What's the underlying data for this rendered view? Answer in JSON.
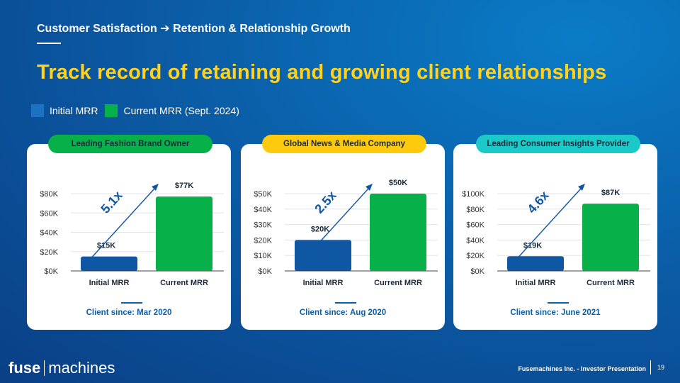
{
  "header": {
    "subtitle": "Customer Satisfaction ➔ Retention & Relationship Growth",
    "headline": "Track record of retaining and growing client relationships"
  },
  "legend": [
    {
      "label": "Initial MRR",
      "color": "#1a72c0"
    },
    {
      "label": "Current MRR (Sept. 2024)",
      "color": "#08b04a"
    }
  ],
  "colors": {
    "initial": "#0f56a3",
    "current": "#08b04a",
    "arrow": "#0f56a3",
    "axis": "#444444"
  },
  "chart_data": [
    {
      "type": "bar",
      "client": "Leading Fashion Brand Owner",
      "pill_color": "#08b04a",
      "categories": [
        "Initial MRR",
        "Current MRR"
      ],
      "values": [
        15,
        77
      ],
      "value_labels": [
        "$15K",
        "$77K"
      ],
      "yticks": [
        0,
        20,
        40,
        60,
        80
      ],
      "ytick_labels": [
        "$0K",
        "$20K",
        "$40K",
        "$60K",
        "$80K"
      ],
      "ylim": [
        0,
        80
      ],
      "multiplier": "5.1x",
      "client_since": "Client since: Mar 2020"
    },
    {
      "type": "bar",
      "client": "Global News & Media Company",
      "pill_color": "#ffc90e",
      "categories": [
        "Initial MRR",
        "Current MRR"
      ],
      "values": [
        20,
        50
      ],
      "value_labels": [
        "$20K",
        "$50K"
      ],
      "yticks": [
        0,
        10,
        20,
        30,
        40,
        50
      ],
      "ytick_labels": [
        "$0K",
        "$10K",
        "$20K",
        "$30K",
        "$40K",
        "$50K"
      ],
      "ylim": [
        0,
        50
      ],
      "multiplier": "2.5x",
      "client_since": "Client since: Aug 2020"
    },
    {
      "type": "bar",
      "client": "Leading Consumer Insights Provider",
      "pill_color": "#1bc9c9",
      "categories": [
        "Initial MRR",
        "Current MRR"
      ],
      "values": [
        19,
        87
      ],
      "value_labels": [
        "$19K",
        "$87K"
      ],
      "yticks": [
        0,
        20,
        40,
        60,
        80,
        100
      ],
      "ytick_labels": [
        "$0K",
        "$20K",
        "$40K",
        "$60K",
        "$80K",
        "$100K"
      ],
      "ylim": [
        0,
        100
      ],
      "multiplier": "4.6x",
      "client_since": "Client since: June 2021"
    }
  ],
  "footer": {
    "logo_bold": "fuse",
    "logo_light": "machines",
    "text": "Fusemachines Inc. - Investor Presentation",
    "page": "19"
  }
}
